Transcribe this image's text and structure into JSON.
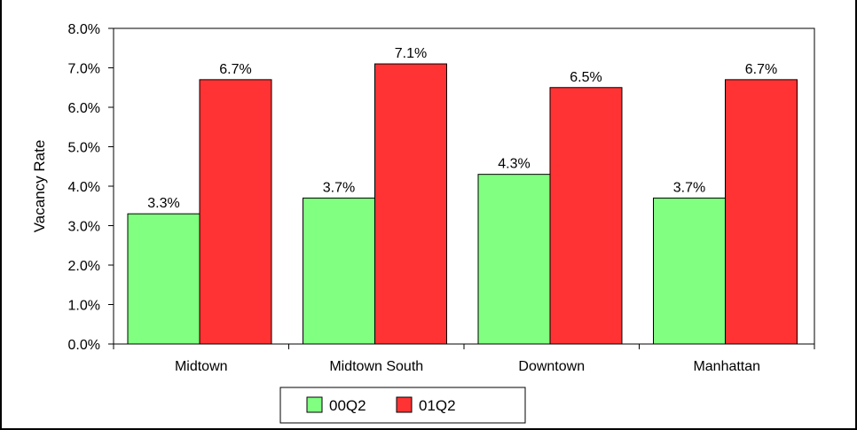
{
  "chart_data": {
    "type": "bar",
    "title": "",
    "xlabel": "",
    "ylabel": "Vacancy Rate",
    "categories": [
      "Midtown",
      "Midtown South",
      "Downtown",
      "Manhattan"
    ],
    "series": [
      {
        "name": "00Q2",
        "color": "#80ff80",
        "values": [
          3.3,
          3.7,
          4.3,
          3.7
        ],
        "labels": [
          "3.3%",
          "3.7%",
          "4.3%",
          "3.7%"
        ]
      },
      {
        "name": "01Q2",
        "color": "#ff3333",
        "values": [
          6.7,
          7.1,
          6.5,
          6.7
        ],
        "labels": [
          "6.7%",
          "7.1%",
          "6.5%",
          "6.7%"
        ]
      }
    ],
    "ylim": [
      0,
      8
    ],
    "yticks": [
      0,
      1,
      2,
      3,
      4,
      5,
      6,
      7,
      8
    ],
    "ytick_labels": [
      "0.0%",
      "1.0%",
      "2.0%",
      "3.0%",
      "4.0%",
      "5.0%",
      "6.0%",
      "7.0%",
      "8.0%"
    ],
    "grid": false,
    "legend_position": "bottom-center"
  }
}
